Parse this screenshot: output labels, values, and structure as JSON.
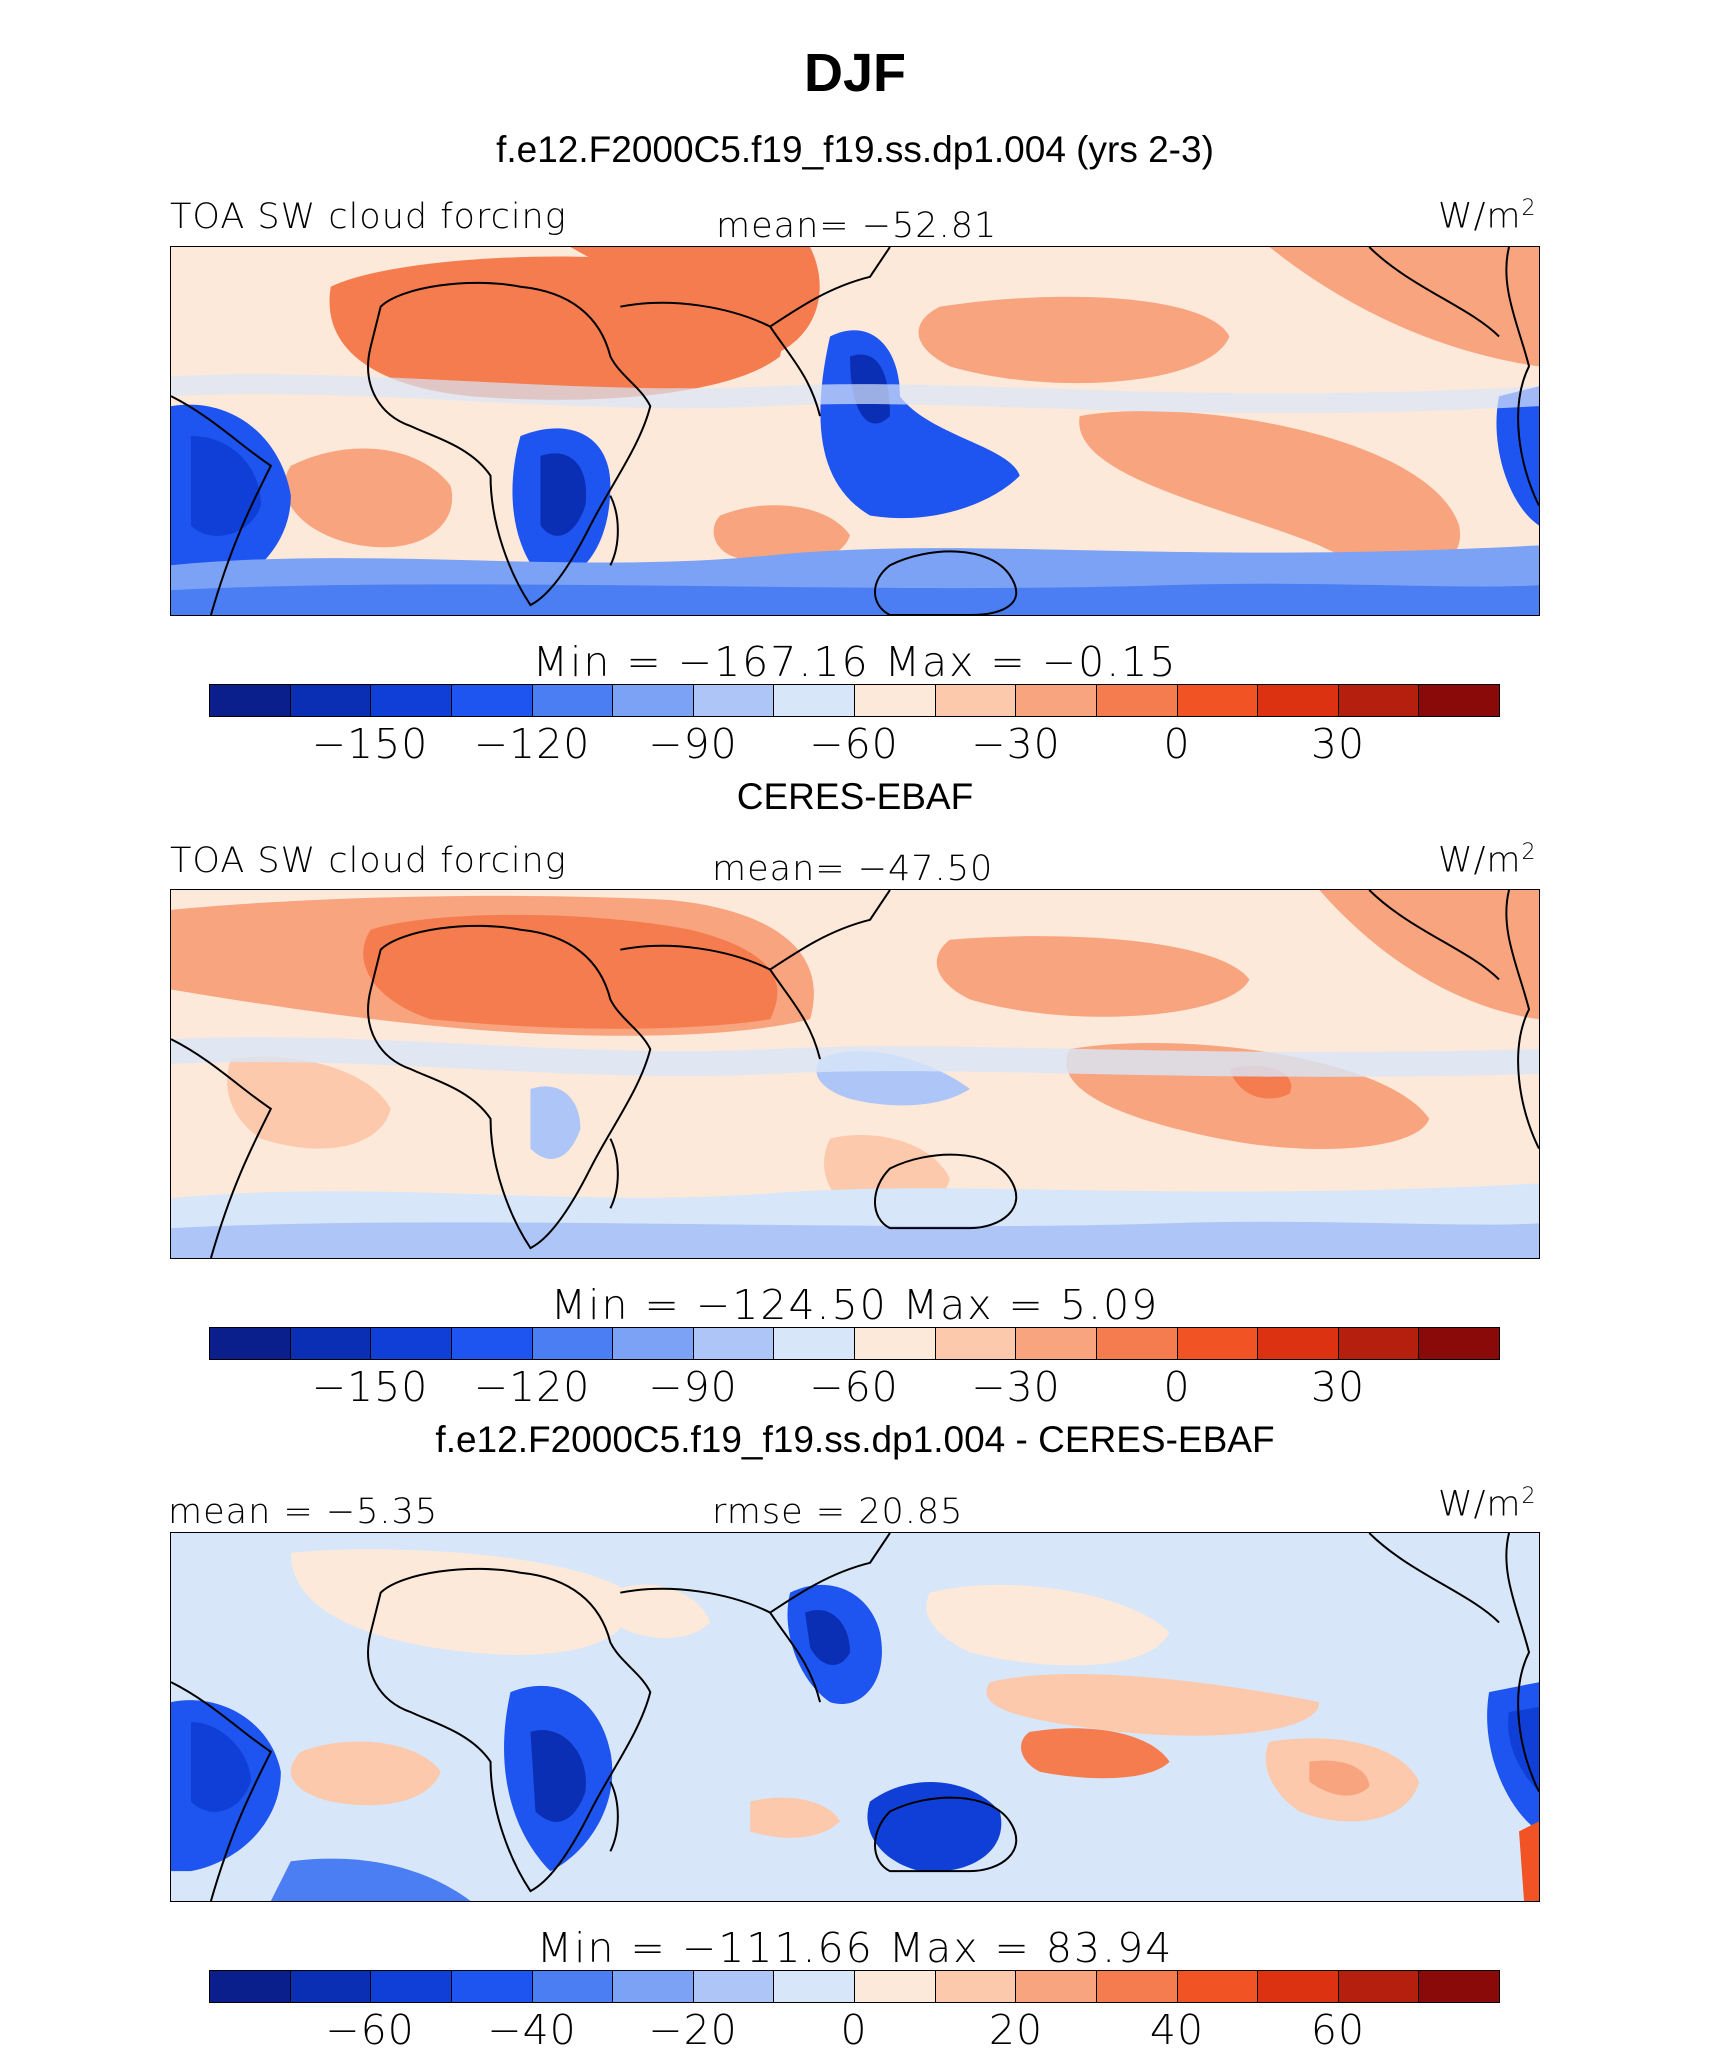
{
  "title": "DJF",
  "colors": {
    "scale": [
      "#0a1e8c",
      "#0b2fb4",
      "#0f3fd6",
      "#1e55f0",
      "#4a7ef2",
      "#7ba2f5",
      "#aec5f7",
      "#d8e6f9",
      "#fde9d9",
      "#fcc9ac",
      "#f8a47f",
      "#f57c4f",
      "#f25324",
      "#dc3211",
      "#b41f0e",
      "#8a0a0a"
    ]
  },
  "panels": [
    {
      "title": "f.e12.F2000C5.f19_f19.ss.dp1.004 (yrs 2-3)",
      "left_label": "TOA SW cloud forcing",
      "center_label": "mean= −52.81",
      "units": "W/m",
      "units_exp": "2",
      "stats": "Min  =  −167.16  Max  =    −0.15",
      "ticks": [
        "−150",
        "−120",
        "−90",
        "−60",
        "−30",
        "0",
        "30"
      ]
    },
    {
      "title": "CERES-EBAF",
      "left_label": "TOA SW cloud forcing",
      "center_label": "mean= −47.50",
      "units": "W/m",
      "units_exp": "2",
      "stats": "Min  =  −124.50  Max  =     5.09",
      "ticks": [
        "−150",
        "−120",
        "−90",
        "−60",
        "−30",
        "0",
        "30"
      ]
    },
    {
      "title": "f.e12.F2000C5.f19_f19.ss.dp1.004 - CERES-EBAF",
      "left_label": "mean =   −5.35",
      "center_label": "rmse =   20.85",
      "units": "W/m",
      "units_exp": "2",
      "stats": "Min  =  −111.66  Max  =   83.94",
      "ticks": [
        "−60",
        "−40",
        "−20",
        "0",
        "20",
        "40",
        "60"
      ]
    }
  ]
}
